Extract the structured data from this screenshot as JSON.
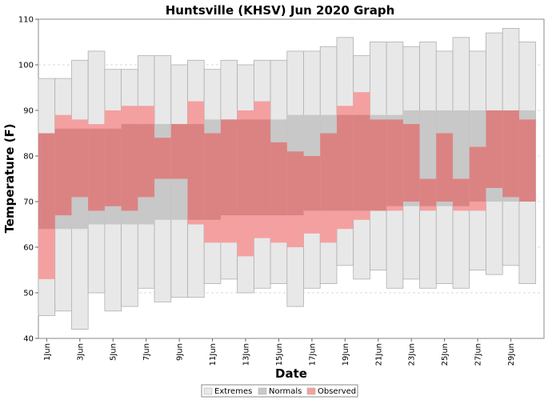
{
  "chart_data": {
    "type": "bar",
    "title": "Huntsville (KHSV) Jun 2020 Graph",
    "xlabel": "Date",
    "ylabel": "Temperature (F)",
    "ylim": [
      40,
      110
    ],
    "yticks": [
      40,
      50,
      60,
      70,
      80,
      90,
      100,
      110
    ],
    "grid": true,
    "x": [
      1,
      2,
      3,
      4,
      5,
      6,
      7,
      8,
      9,
      10,
      11,
      12,
      13,
      14,
      15,
      16,
      17,
      18,
      19,
      20,
      21,
      22,
      23,
      24,
      25,
      26,
      27,
      28,
      29,
      30
    ],
    "xtick_labels": [
      "1Jun",
      "3Jun",
      "5Jun",
      "7Jun",
      "9Jun",
      "11Jun",
      "13Jun",
      "15Jun",
      "17Jun",
      "19Jun",
      "21Jun",
      "23Jun",
      "25Jun",
      "27Jun",
      "29Jun"
    ],
    "xtick_days": [
      1,
      3,
      5,
      7,
      9,
      11,
      13,
      15,
      17,
      19,
      21,
      23,
      25,
      27,
      29
    ],
    "legend": {
      "placement": "bottom-center",
      "labels": {
        "extremes": "Extremes",
        "normals": "Normals",
        "observed": "Observed"
      }
    },
    "colors": {
      "extremes": "#e8e8e8",
      "normals": "#c8c8c8",
      "observed": "#f4a0a0",
      "overlap": "#db8383",
      "bar_edge": "#b0b0b0"
    },
    "series": [
      {
        "name": "Extremes",
        "high": [
          97,
          97,
          101,
          103,
          99,
          99,
          102,
          102,
          100,
          101,
          99,
          101,
          100,
          101,
          101,
          103,
          103,
          104,
          106,
          102,
          105,
          105,
          104,
          105,
          103,
          106,
          103,
          107,
          108,
          105
        ],
        "low": [
          45,
          46,
          42,
          50,
          46,
          47,
          51,
          48,
          49,
          49,
          52,
          53,
          50,
          51,
          52,
          47,
          51,
          52,
          56,
          53,
          55,
          51,
          53,
          51,
          52,
          51,
          55,
          54,
          56,
          52
        ]
      },
      {
        "name": "Normals",
        "high": [
          85,
          86,
          86,
          86,
          86,
          87,
          87,
          87,
          87,
          87,
          88,
          88,
          88,
          88,
          88,
          89,
          89,
          89,
          89,
          89,
          89,
          89,
          90,
          90,
          90,
          90,
          90,
          90,
          90,
          90
        ],
        "low": [
          64,
          64,
          64,
          65,
          65,
          65,
          65,
          66,
          66,
          66,
          66,
          67,
          67,
          67,
          67,
          67,
          68,
          68,
          68,
          68,
          68,
          69,
          69,
          69,
          69,
          69,
          70,
          70,
          70,
          70
        ]
      },
      {
        "name": "Observed",
        "high": [
          85,
          89,
          88,
          87,
          90,
          91,
          91,
          84,
          87,
          92,
          85,
          88,
          90,
          92,
          83,
          81,
          80,
          85,
          91,
          94,
          88,
          88,
          87,
          75,
          85,
          75,
          82,
          90,
          90,
          88
        ],
        "low": [
          53,
          67,
          71,
          68,
          69,
          68,
          71,
          75,
          75,
          65,
          61,
          61,
          58,
          62,
          61,
          60,
          63,
          61,
          64,
          66,
          68,
          68,
          70,
          68,
          70,
          68,
          68,
          73,
          71,
          70
        ]
      }
    ]
  }
}
